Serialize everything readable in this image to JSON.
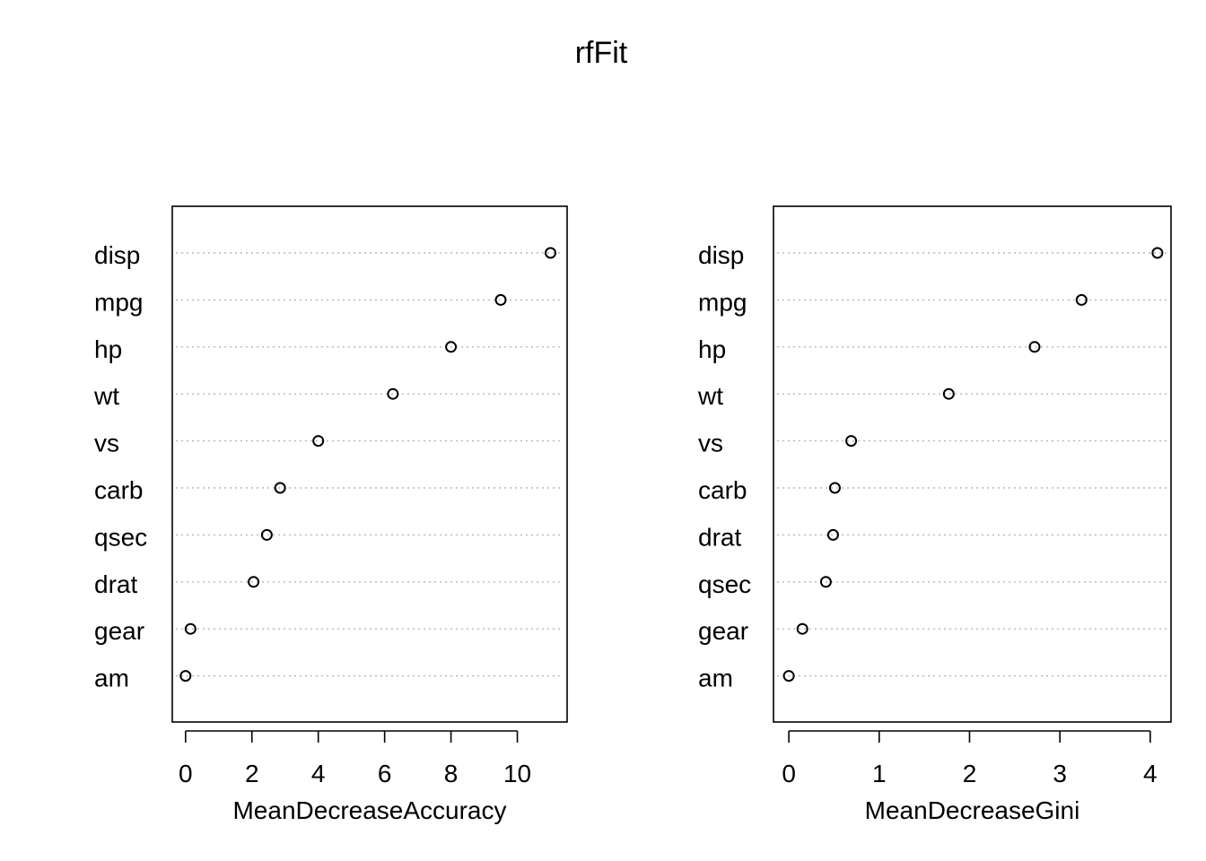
{
  "title": "rfFit",
  "chart_data": [
    {
      "type": "scatter",
      "variant": "dotchart",
      "xlabel": "MeanDecreaseAccuracy",
      "xlim": [
        -0.4,
        11.5
      ],
      "xticks": [
        0,
        2,
        4,
        6,
        8,
        10
      ],
      "grid": "dotted horizontal",
      "categories": [
        "disp",
        "mpg",
        "hp",
        "wt",
        "vs",
        "carb",
        "qsec",
        "drat",
        "gear",
        "am"
      ],
      "values": [
        11.0,
        9.5,
        8.0,
        6.25,
        4.0,
        2.85,
        2.45,
        2.05,
        0.15,
        0.0
      ]
    },
    {
      "type": "scatter",
      "variant": "dotchart",
      "xlabel": "MeanDecreaseGini",
      "xlim": [
        -0.17,
        4.23
      ],
      "xticks": [
        0,
        1,
        2,
        3,
        4
      ],
      "grid": "dotted horizontal",
      "categories": [
        "disp",
        "mpg",
        "hp",
        "wt",
        "vs",
        "carb",
        "drat",
        "qsec",
        "gear",
        "am"
      ],
      "values": [
        4.08,
        3.24,
        2.72,
        1.77,
        0.69,
        0.51,
        0.49,
        0.41,
        0.15,
        0.0
      ]
    }
  ]
}
